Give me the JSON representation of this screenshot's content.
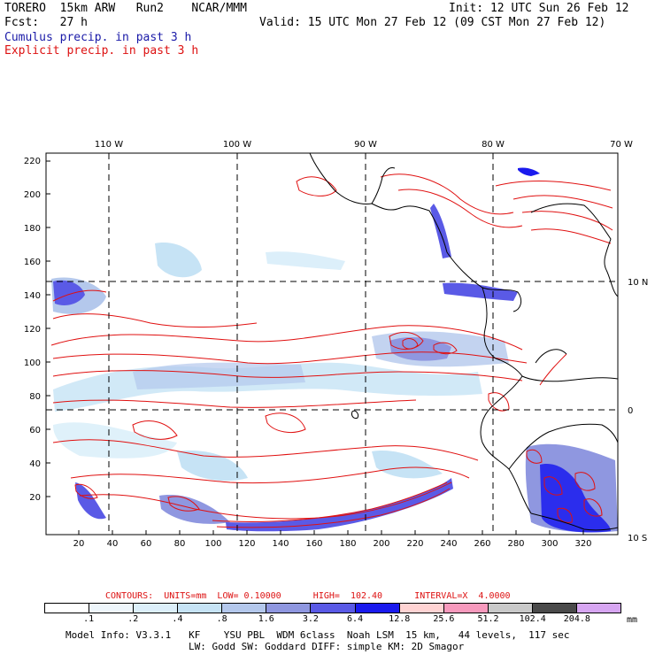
{
  "header": {
    "model": "TORERO  15km ARW   Run2    NCAR/MMM",
    "init": "Init: 12 UTC Sun 26 Feb 12",
    "fcst": "Fcst:   27 h",
    "valid": "Valid: 15 UTC Mon 27 Feb 12 (09 CST Mon 27 Feb 12)",
    "cumulus": "Cumulus precip. in past 3 h",
    "explicit": "Explicit precip. in past 3 h"
  },
  "map": {
    "lon_labels": [
      "110 W",
      "100 W",
      "90 W",
      "80 W",
      "70 W"
    ],
    "lat_labels": [
      "10 N",
      "0",
      "10 S"
    ],
    "y_ticks": [
      "220",
      "200",
      "180",
      "160",
      "140",
      "120",
      "100",
      "80",
      "60",
      "40",
      "20"
    ],
    "x_ticks": [
      "20",
      "40",
      "60",
      "80",
      "100",
      "120",
      "140",
      "160",
      "180",
      "200",
      "220",
      "240",
      "260",
      "280",
      "300",
      "320"
    ]
  },
  "contours": {
    "label": "CONTOURS:  UNITS=mm  LOW= 0.10000      HIGH=  102.40      INTERVAL=X  4.0000"
  },
  "colorbar": {
    "labels": [
      ".1",
      ".2",
      ".4",
      ".8",
      "1.6",
      "3.2",
      "6.4",
      "12.8",
      "25.6",
      "51.2",
      "102.4",
      "204.8"
    ],
    "unit": "mm",
    "colors": [
      "#ffffff",
      "#eef6fb",
      "#dceffa",
      "#c6e3f5",
      "#b4c8ec",
      "#8f97e0",
      "#5a5ae6",
      "#1a1aee",
      "#ffd3d3",
      "#f79abd",
      "#c9c9c9",
      "#4a4a4a",
      "#d7a6f2"
    ]
  },
  "footer": {
    "line1": "Model Info: V3.3.1   KF    YSU PBL  WDM 6class  Noah LSM  15 km,   44 levels,  117 sec",
    "line2": "LW: Godd SW: Goddard DIFF: simple KM: 2D Smagor"
  }
}
